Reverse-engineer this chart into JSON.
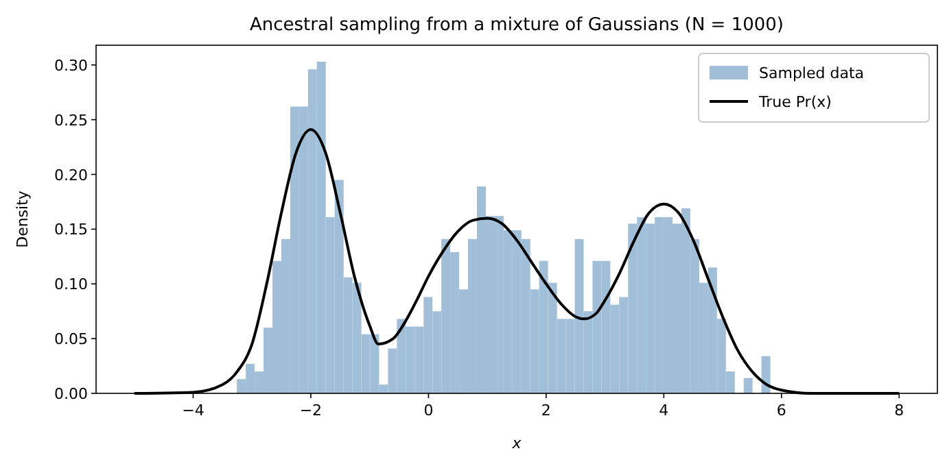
{
  "chart_data": {
    "type": "histogram",
    "title": "Ancestral sampling from a mixture of Gaussians (N = 1000)",
    "xlabel": "x",
    "ylabel": "Density",
    "bins": [
      -3.257,
      -3.106,
      -2.955,
      -2.804,
      -2.652,
      -2.501,
      -2.35,
      -2.199,
      -2.048,
      -1.897,
      -1.746,
      -1.595,
      -1.443,
      -1.292,
      -1.141,
      -0.99,
      -0.839,
      -0.688,
      -0.537,
      -0.386,
      -0.234,
      -0.083,
      0.068,
      0.219,
      0.37,
      0.521,
      0.672,
      0.823,
      0.975,
      1.126,
      1.277,
      1.428,
      1.579,
      1.73,
      1.881,
      2.032,
      2.184,
      2.335,
      2.486,
      2.637,
      2.788,
      2.939,
      3.09,
      3.241,
      3.393,
      3.544,
      3.695,
      3.846,
      3.997,
      4.148,
      4.299,
      4.45,
      4.602,
      4.753,
      4.904,
      5.055,
      5.206,
      5.357,
      5.508,
      5.659,
      5.811
    ],
    "series": [
      {
        "name": "Sampled data",
        "color": "#a2bfda",
        "values": [
          0.013,
          0.027,
          0.02,
          0.06,
          0.121,
          0.141,
          0.262,
          0.262,
          0.296,
          0.303,
          0.161,
          0.195,
          0.106,
          0.101,
          0.054,
          0.054,
          0.008,
          0.041,
          0.068,
          0.061,
          0.061,
          0.088,
          0.075,
          0.141,
          0.129,
          0.095,
          0.141,
          0.189,
          0.162,
          0.162,
          0.149,
          0.149,
          0.141,
          0.095,
          0.121,
          0.101,
          0.068,
          0.068,
          0.141,
          0.075,
          0.121,
          0.121,
          0.081,
          0.088,
          0.155,
          0.161,
          0.155,
          0.161,
          0.161,
          0.155,
          0.169,
          0.141,
          0.101,
          0.115,
          0.068,
          0.02,
          0,
          0.014,
          0,
          0.034
        ]
      },
      {
        "name": "True Pr(x)",
        "type": "line",
        "color": "#000000",
        "x": [
          -5,
          -4,
          -3.5,
          -3.25,
          -3,
          -2.75,
          -2.5,
          -2.25,
          -2,
          -1.75,
          -1.5,
          -1.25,
          -1,
          -0.85,
          -0.6,
          -0.4,
          -0.2,
          0,
          0.25,
          0.5,
          0.75,
          1,
          1.25,
          1.5,
          1.75,
          2,
          2.25,
          2.5,
          2.65,
          2.85,
          3,
          3.25,
          3.5,
          3.75,
          4,
          4.25,
          4.5,
          4.75,
          5,
          5.25,
          5.5,
          5.75,
          6,
          6.5,
          7,
          8
        ],
        "values": [
          0,
          0.001,
          0.008,
          0.02,
          0.045,
          0.1,
          0.165,
          0.22,
          0.241,
          0.22,
          0.165,
          0.105,
          0.062,
          0.045,
          0.05,
          0.065,
          0.085,
          0.107,
          0.13,
          0.148,
          0.158,
          0.16,
          0.155,
          0.14,
          0.12,
          0.1,
          0.082,
          0.07,
          0.068,
          0.073,
          0.085,
          0.11,
          0.14,
          0.165,
          0.173,
          0.165,
          0.14,
          0.105,
          0.07,
          0.04,
          0.02,
          0.008,
          0.003,
          0,
          0,
          0
        ]
      }
    ],
    "xlim": [
      -5.65,
      8.65
    ],
    "ylim": [
      0,
      0.318
    ],
    "xticks": [
      {
        "value": -4,
        "label": "−4"
      },
      {
        "value": -2,
        "label": "−2"
      },
      0,
      2,
      4,
      6,
      8
    ],
    "yticks": [
      {
        "value": 0,
        "label": "0.00"
      },
      {
        "value": 0.05,
        "label": "0.05"
      },
      {
        "value": 0.1,
        "label": "0.10"
      },
      {
        "value": 0.15,
        "label": "0.15"
      },
      {
        "value": 0.2,
        "label": "0.20"
      },
      {
        "value": 0.25,
        "label": "0.25"
      },
      {
        "value": 0.3,
        "label": "0.30"
      }
    ],
    "legend": "top right",
    "grid": false
  }
}
